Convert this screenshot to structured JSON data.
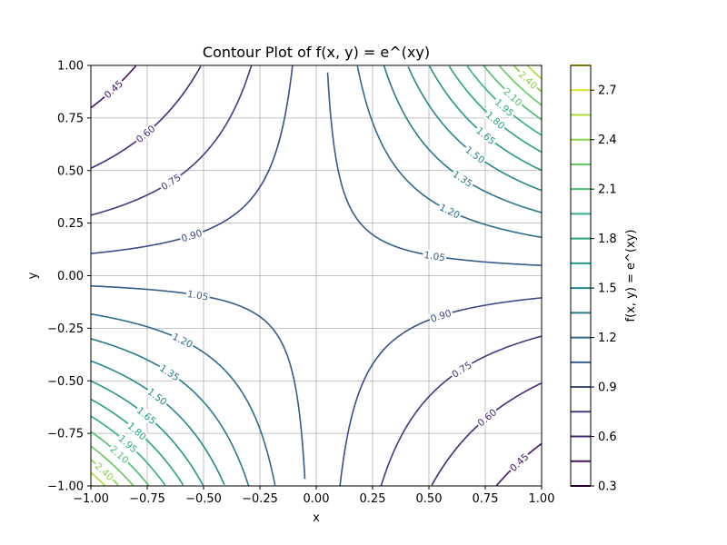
{
  "chart_data": {
    "type": "contour",
    "function": "f(x, y) = e^(xy)",
    "title": "Contour Plot of f(x, y) = e^(xy)",
    "xlabel": "x",
    "ylabel": "y",
    "xlim": [
      -1.0,
      1.0
    ],
    "ylim": [
      -1.0,
      1.0
    ],
    "grid": true,
    "x_ticks": [
      "−1.00",
      "−0.75",
      "−0.50",
      "−0.25",
      "0.00",
      "0.25",
      "0.50",
      "0.75",
      "1.00"
    ],
    "y_ticks": [
      "−1.00",
      "−0.75",
      "−0.50",
      "−0.25",
      "0.00",
      "0.25",
      "0.50",
      "0.75",
      "1.00"
    ],
    "levels": [
      0.3,
      0.45,
      0.6,
      0.75,
      0.9,
      1.05,
      1.2,
      1.35,
      1.5,
      1.65,
      1.8,
      1.95,
      2.1,
      2.25,
      2.4,
      2.55,
      2.7,
      2.85
    ],
    "level_labels": {
      "0.45": "0.45",
      "0.60": "0.60",
      "0.75": "0.75",
      "0.90": "0.90",
      "1.05": "1.05",
      "1.20": "1.20",
      "1.35": "1.35",
      "1.50": "1.50",
      "1.65": "1.65",
      "1.80": "1.80",
      "1.95": "1.95",
      "2.10": "2.10",
      "2.25": "2.25",
      "2.40": "2.40"
    },
    "colorbar": {
      "label": "f(x, y) = e^(xy)",
      "range": [
        0.3,
        2.85
      ],
      "tick_values": [
        0.3,
        0.6,
        0.9,
        1.2,
        1.5,
        1.8,
        2.1,
        2.4,
        2.7
      ],
      "tick_labels": [
        "0.3",
        "0.6",
        "0.9",
        "1.2",
        "1.5",
        "1.8",
        "2.1",
        "2.4",
        "2.7"
      ]
    },
    "colormap": "viridis"
  }
}
